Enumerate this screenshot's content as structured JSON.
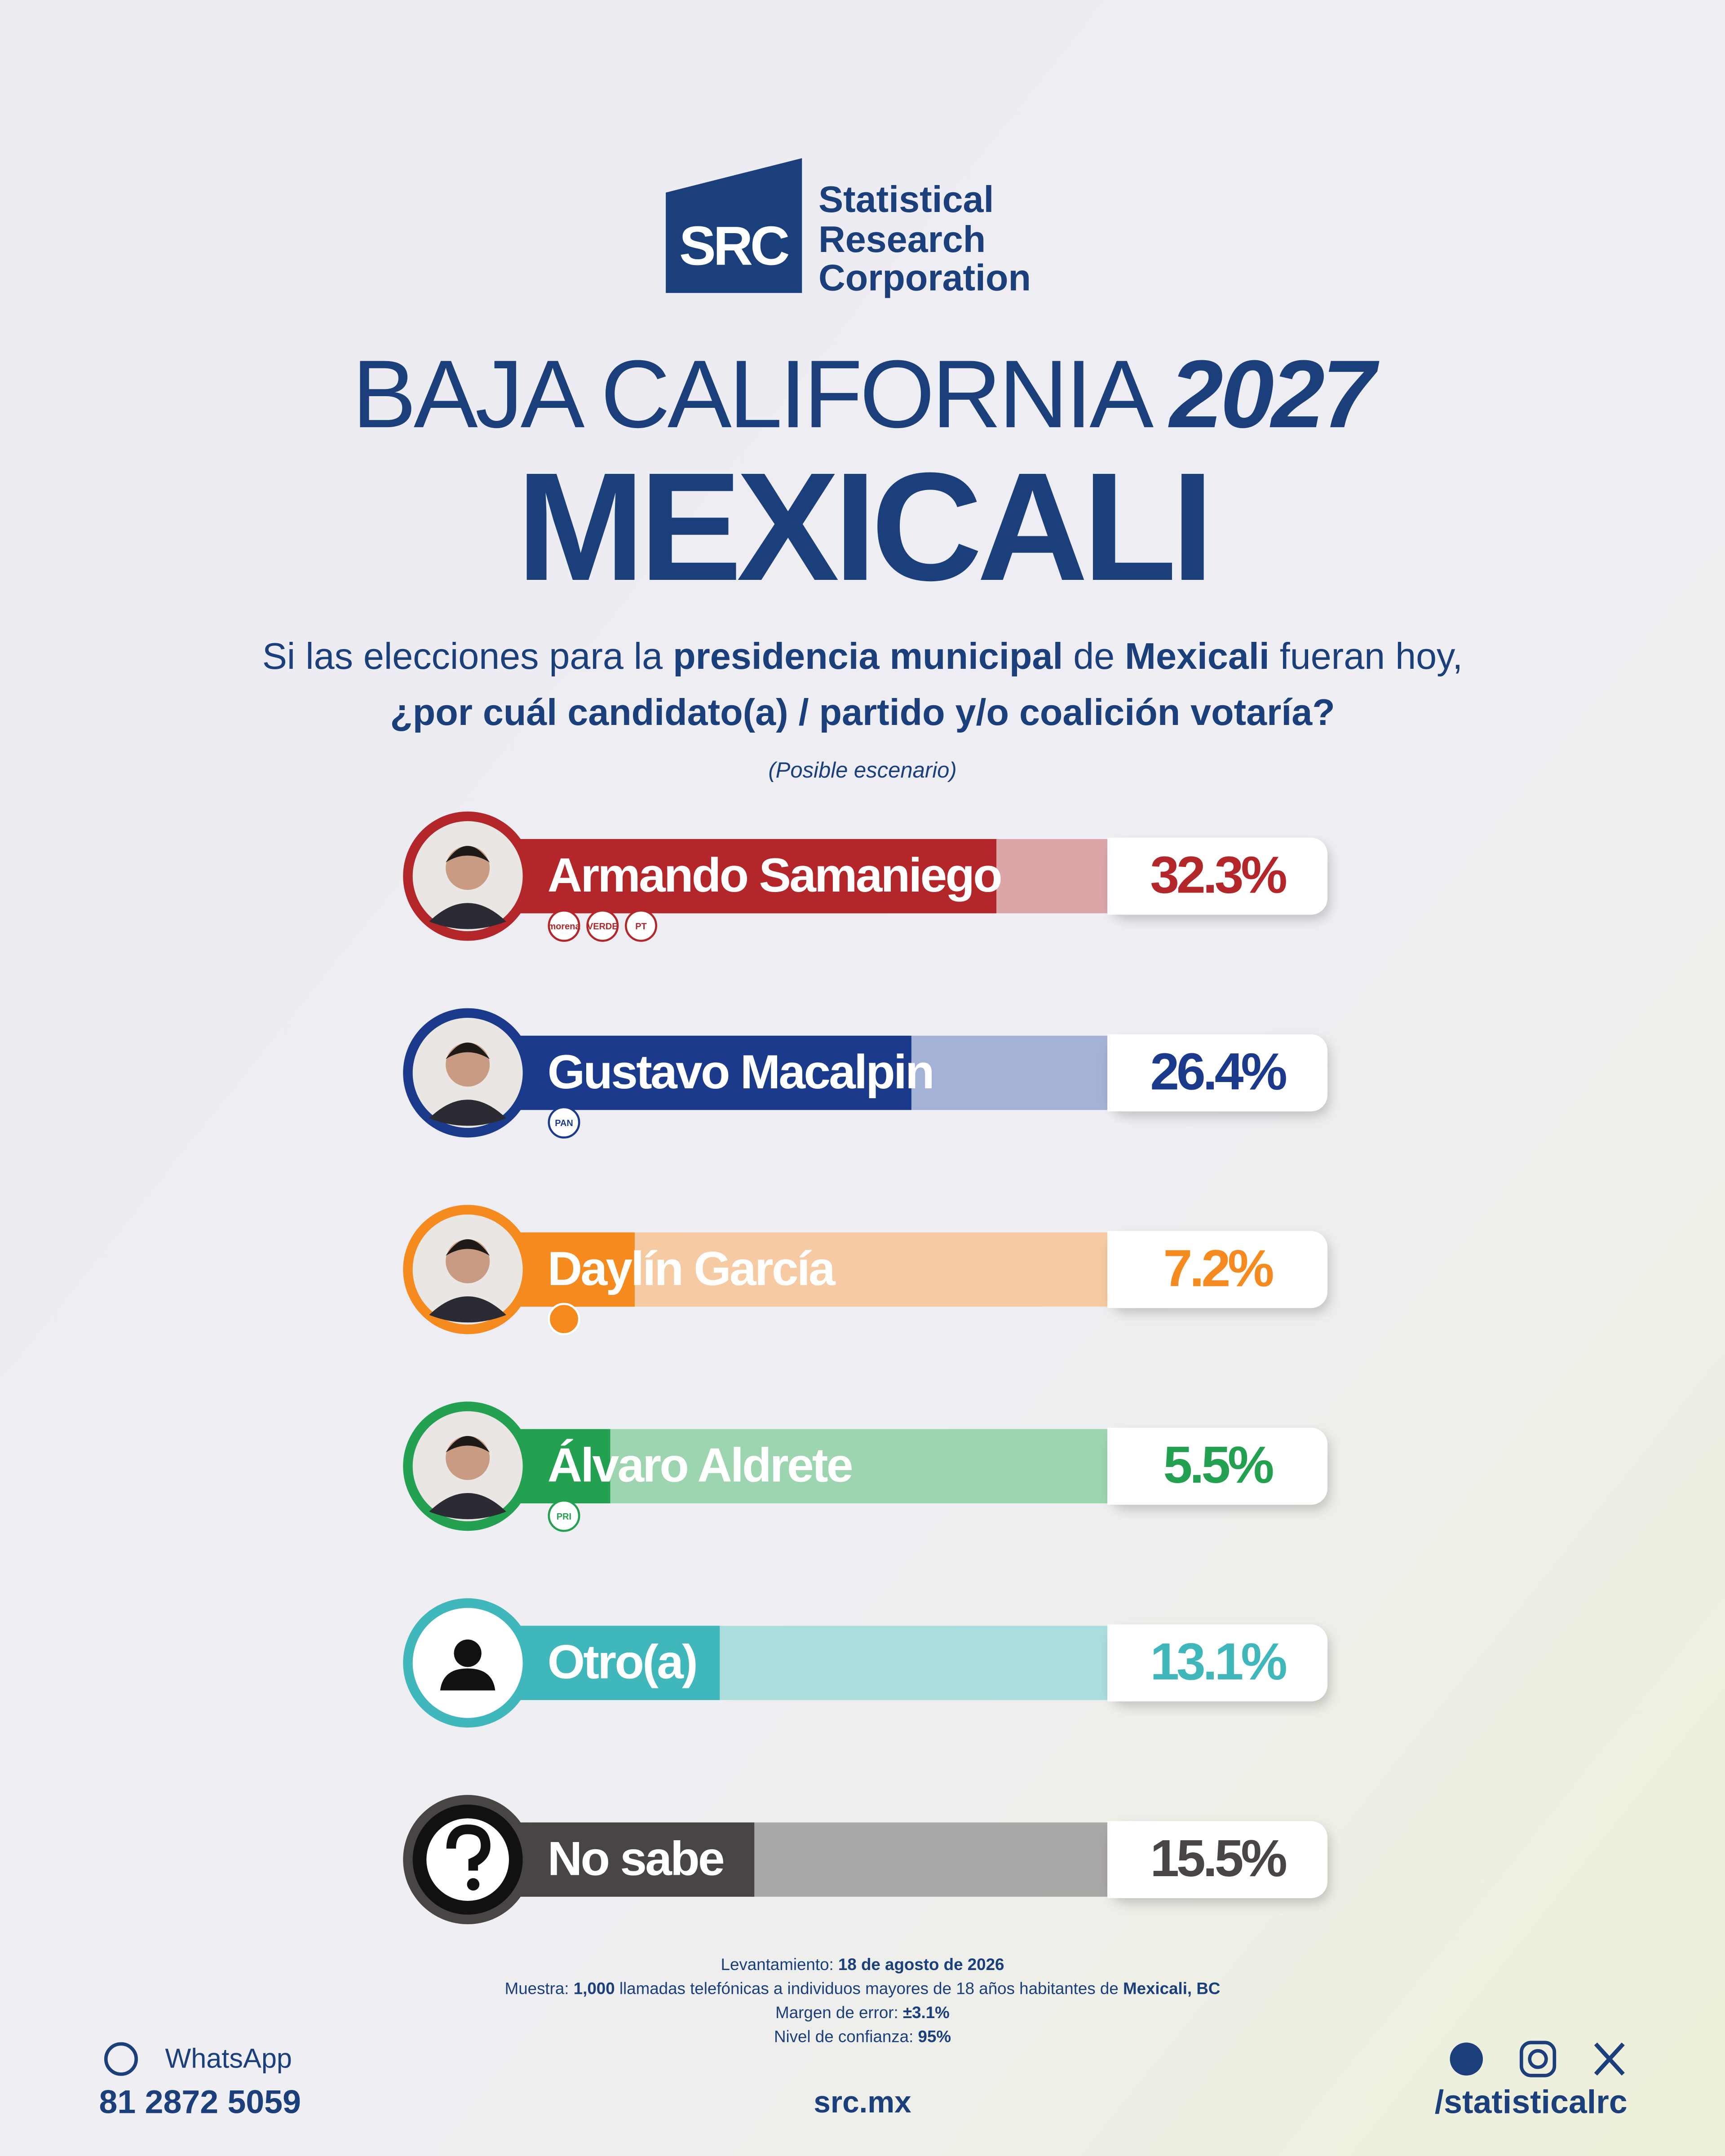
{
  "header": {
    "logo": "SRC",
    "company": [
      "Statistical",
      "Research",
      "Corporation"
    ],
    "title": [
      "BAJA CALIFORNIA ",
      "2027"
    ],
    "subtitle": "MEXICALI",
    "question": [
      "Si las elecciones para la ",
      "presidencia municipal",
      " de ",
      "Mexicali",
      " fueran hoy,"
    ],
    "question_line2": "¿por cuál candidato(a) / partido y/o coalición votaría?",
    "note": "(Posible escenario)"
  },
  "chart_data": {
    "type": "bar",
    "orientation": "horizontal",
    "categories": [
      "Armando Samaniego",
      "Gustavo Macalpin",
      "Daylín García",
      "Álvaro Aldrete",
      "Otro(a)",
      "No sabe"
    ],
    "values": [
      32.3,
      26.4,
      7.2,
      5.5,
      13.1,
      15.5
    ],
    "value_labels": [
      "32.3%",
      "26.4%",
      "7.2%",
      "5.5%",
      "13.1%",
      "15.5%"
    ],
    "colors": [
      "#b3262a",
      "#1b3a8c",
      "#f58a1f",
      "#23a050",
      "#3fb7bb",
      "#4a4545"
    ],
    "light_colors": [
      "#dca6a9",
      "#a4b2d7",
      "#f6caa2",
      "#9dd5b0",
      "#abdddd",
      "#aaa7a7"
    ],
    "parties": [
      [
        "morena",
        "VERDE",
        "PT"
      ],
      [
        "PAN"
      ],
      [],
      [
        "PRI"
      ],
      [],
      []
    ],
    "xlim": [
      0,
      40
    ]
  },
  "footer": {
    "method": [
      [
        "Levantamiento: ",
        "18 de agosto de 2026"
      ],
      [
        "Muestra: ",
        "1,000",
        " llamadas telefónicas a individuos mayores de 18 años habitantes de ",
        "Mexicali, BC"
      ],
      [
        "Margen de error: ",
        "±3.1%"
      ],
      [
        "Nivel de confianza: ",
        "95%"
      ]
    ],
    "whatsapp": "WhatsApp",
    "phone": "81 2872 5059",
    "site": "src.mx",
    "social": "/statisticalrc"
  }
}
